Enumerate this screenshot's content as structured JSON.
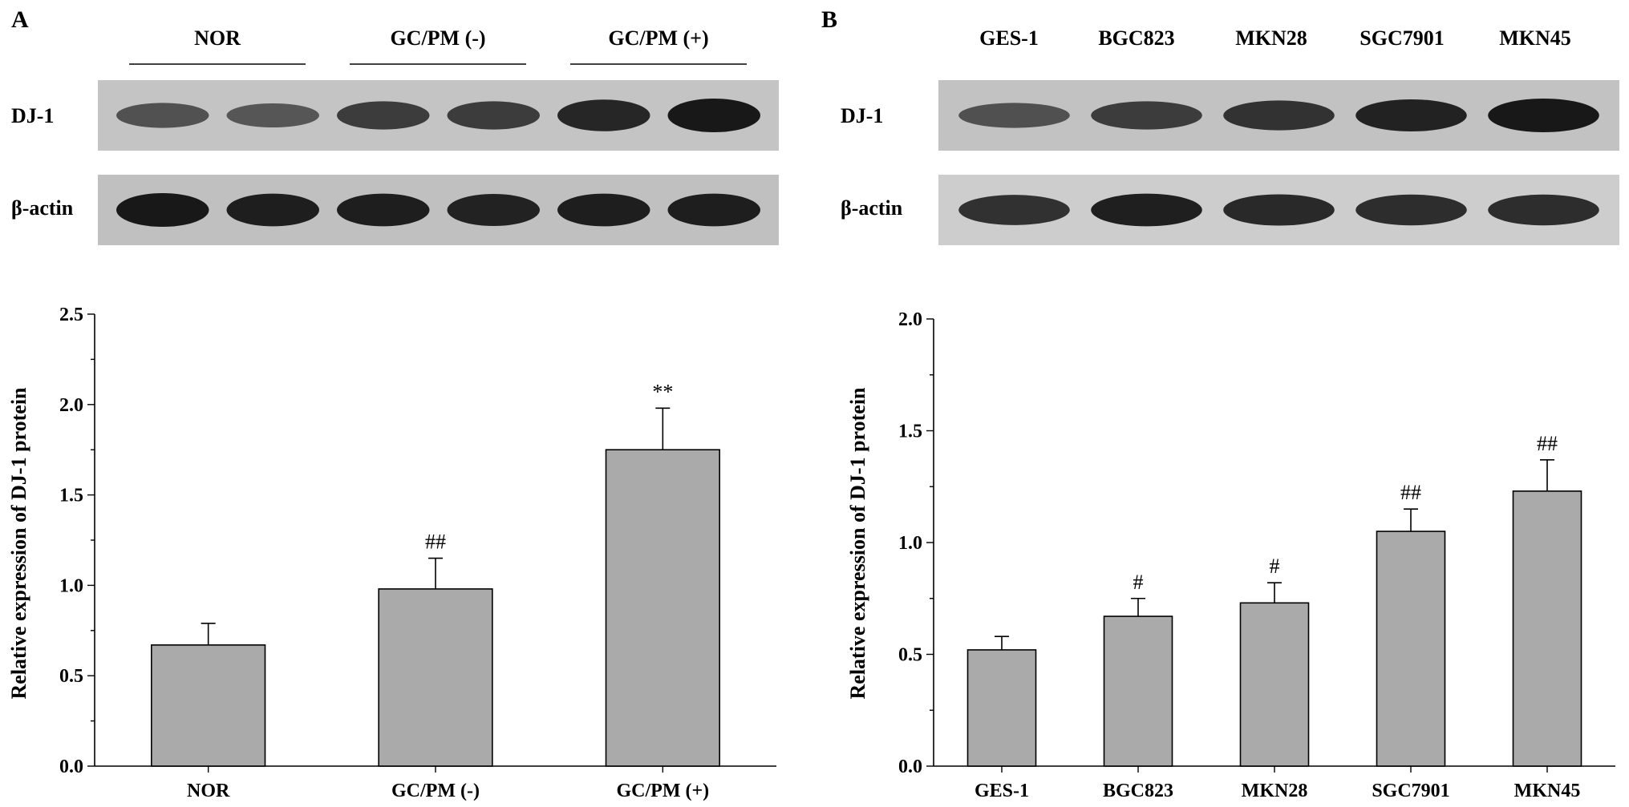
{
  "panels": [
    {
      "letter": "A",
      "blot": {
        "groups": [
          "NOR",
          "GC/PM (-)",
          "GC/PM (+)"
        ],
        "rows": [
          {
            "label": "DJ-1",
            "intensity": [
              0.55,
              0.5,
              0.72,
              0.72,
              0.9,
              1.0
            ]
          },
          {
            "label": "β-actin",
            "intensity": [
              1.0,
              0.95,
              0.95,
              0.92,
              0.95,
              0.95
            ]
          }
        ]
      },
      "chart_data": {
        "type": "bar",
        "categories": [
          "NOR",
          "GC/PM (-)",
          "GC/PM (+)"
        ],
        "values": [
          0.67,
          0.98,
          1.75
        ],
        "errors": [
          0.12,
          0.17,
          0.23
        ],
        "annotations": [
          "",
          "##",
          "**"
        ],
        "ylabel": "Relative expression of DJ-1 protein",
        "ylim": [
          0,
          2.5
        ],
        "yticks": [
          "0.0",
          "0.5",
          "1.0",
          "1.5",
          "2.0",
          "2.5"
        ],
        "yticks_values": [
          0,
          0.5,
          1.0,
          1.5,
          2.0,
          2.5
        ],
        "bar_color": "#aaaaaa",
        "grid": false
      }
    },
    {
      "letter": "B",
      "blot": {
        "groups": [
          "GES-1",
          "BGC823",
          "MKN28",
          "SGC7901",
          "MKN45"
        ],
        "rows": [
          {
            "label": "DJ-1",
            "intensity": [
              0.55,
              0.72,
              0.8,
              0.92,
              1.0
            ]
          },
          {
            "label": "β-actin",
            "intensity": [
              0.82,
              0.95,
              0.88,
              0.85,
              0.85
            ]
          }
        ]
      },
      "chart_data": {
        "type": "bar",
        "categories": [
          "GES-1",
          "BGC823",
          "MKN28",
          "SGC7901",
          "MKN45"
        ],
        "values": [
          0.52,
          0.67,
          0.73,
          1.05,
          1.23
        ],
        "errors": [
          0.06,
          0.08,
          0.09,
          0.1,
          0.14
        ],
        "annotations": [
          "",
          "#",
          "#",
          "##",
          "##"
        ],
        "ylabel": "Relative expression of DJ-1 protein",
        "ylim": [
          0,
          2.0
        ],
        "yticks": [
          "0.0",
          "0.5",
          "1.0",
          "1.5",
          "2.0"
        ],
        "yticks_values": [
          0,
          0.5,
          1.0,
          1.5,
          2.0
        ],
        "bar_color": "#aaaaaa",
        "grid": false
      }
    }
  ]
}
